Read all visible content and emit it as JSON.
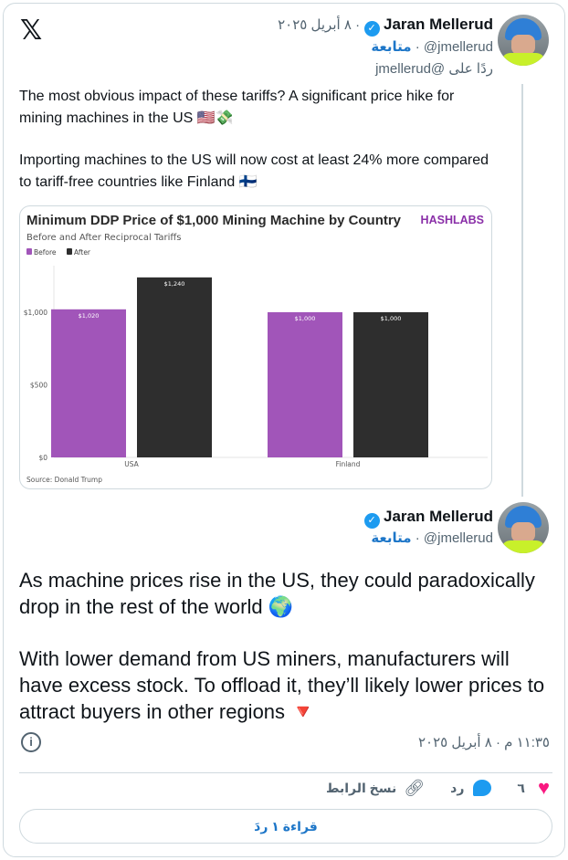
{
  "tweet1": {
    "author_name": "Jaran Mellerud",
    "handle": "@jmellerud",
    "date": "٨ أبريل ٢٠٢٥",
    "follow_label": "متابعة",
    "reply_to": "ردًا على @jmellerud",
    "text_line1": "The most obvious impact of these tariffs? A significant price hike for mining machines in the US 🇺🇸💸",
    "text_line2": "Importing machines to the US will now cost at least 24% more compared to tariff-free countries like Finland 🇫🇮"
  },
  "tweet2": {
    "author_name": "Jaran Mellerud",
    "handle": "@jmellerud",
    "follow_label": "متابعة",
    "text_para1": "As machine prices rise in the US, they could paradoxically drop in the rest of the world 🌍",
    "text_para2": "With lower demand from US miners, manufacturers will have excess stock. To offload it, they’ll likely lower prices to attract buyers in other regions 🔻",
    "timestamp": "١١:٣٥ م · ٨ أبريل ٢٠٢٥"
  },
  "actions": {
    "likes_count": "٦",
    "reply_label": "رد",
    "copy_link_label": "نسخ الرابط",
    "read_replies_label": "قراءة ١ ردَ"
  },
  "colors": {
    "like": "#f91880",
    "reply": "#1d9bf0",
    "verified": "#1d9bf0",
    "follow": "#1d76c8"
  },
  "chart_data": {
    "type": "bar",
    "title": "Minimum DDP Price of $1,000 Mining Machine by Country",
    "subtitle": "Before and After Reciprocal Tariffs",
    "brand": "HASHLABS",
    "source": "Source: Donald Trump",
    "categories": [
      "USA",
      "Finland"
    ],
    "series": [
      {
        "name": "Before",
        "color": "#a155b9",
        "values": [
          1020,
          1000
        ],
        "labels": [
          "$1,020",
          "$1,000"
        ]
      },
      {
        "name": "After",
        "color": "#2e2e2e",
        "values": [
          1240,
          1000
        ],
        "labels": [
          "$1,240",
          "$1,000"
        ]
      }
    ],
    "yticks": [
      {
        "value": 0,
        "label": "$0"
      },
      {
        "value": 500,
        "label": "$500"
      },
      {
        "value": 1000,
        "label": "$1,000"
      }
    ],
    "ylim": [
      0,
      1300
    ],
    "grid": false,
    "legend": "top-left"
  }
}
